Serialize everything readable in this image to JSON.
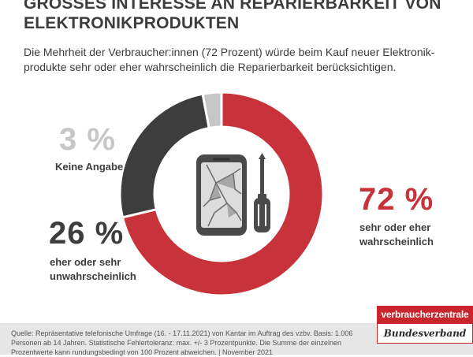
{
  "header": {
    "title_line1": "GROSSES INTERESSE AN REPARIERBARKEIT VON",
    "title_line2": "ELEKTRONIKPRODUKTEN",
    "subtitle_line1": "Die Mehrheit der Verbraucher:innen (72 Prozent) würde beim Kauf neuer Elektronik-",
    "subtitle_line2": "produkte sehr oder eher wahrscheinlich die Reparierbarkeit berücksichtigen."
  },
  "chart_data": {
    "type": "pie",
    "title": "GROSSES INTERESSE AN REPARIERBARKEIT VON ELEKTRONIKPRODUKTEN",
    "unit": "%",
    "slices": [
      {
        "label": "sehr oder eher wahrscheinlich",
        "value": 72,
        "display": "72 %",
        "color": "#c8323a"
      },
      {
        "label": "eher oder sehr unwahrscheinlich",
        "value": 26,
        "display": "26 %",
        "color": "#3d3d3d"
      },
      {
        "label": "Keine Angabe",
        "value": 3,
        "display": "3 %",
        "color": "#c7c7c7"
      }
    ]
  },
  "labels": {
    "s72_line1": "sehr oder eher",
    "s72_line2": "wahrscheinlich",
    "s26_line1": "eher oder sehr",
    "s26_line2": "unwahrscheinlich",
    "s3_line1": "Keine Angabe"
  },
  "center_icon": {
    "icons": [
      "smartphone-broken-screen-icon",
      "screwdriver-icon"
    ],
    "color": "#4a4a4a"
  },
  "footer": {
    "line1": "Quelle: Repräsentative telefonische Umfrage (16. - 17.11.2021) von Kantar im Auftrag des vzbv. Basis: 1.006",
    "line2": "Personen ab 14 Jahren. Statistische Fehlertoleranz: max. +/- 3 Prozentpunkte. Die Summe der einzelnen",
    "line3": "Prozentwerte kann rundungsbedingt von 100 Prozent abweichen. | November 2021"
  },
  "logo": {
    "top": "verbraucherzentrale",
    "bottom": "Bundesverband",
    "color": "#c8252d"
  }
}
